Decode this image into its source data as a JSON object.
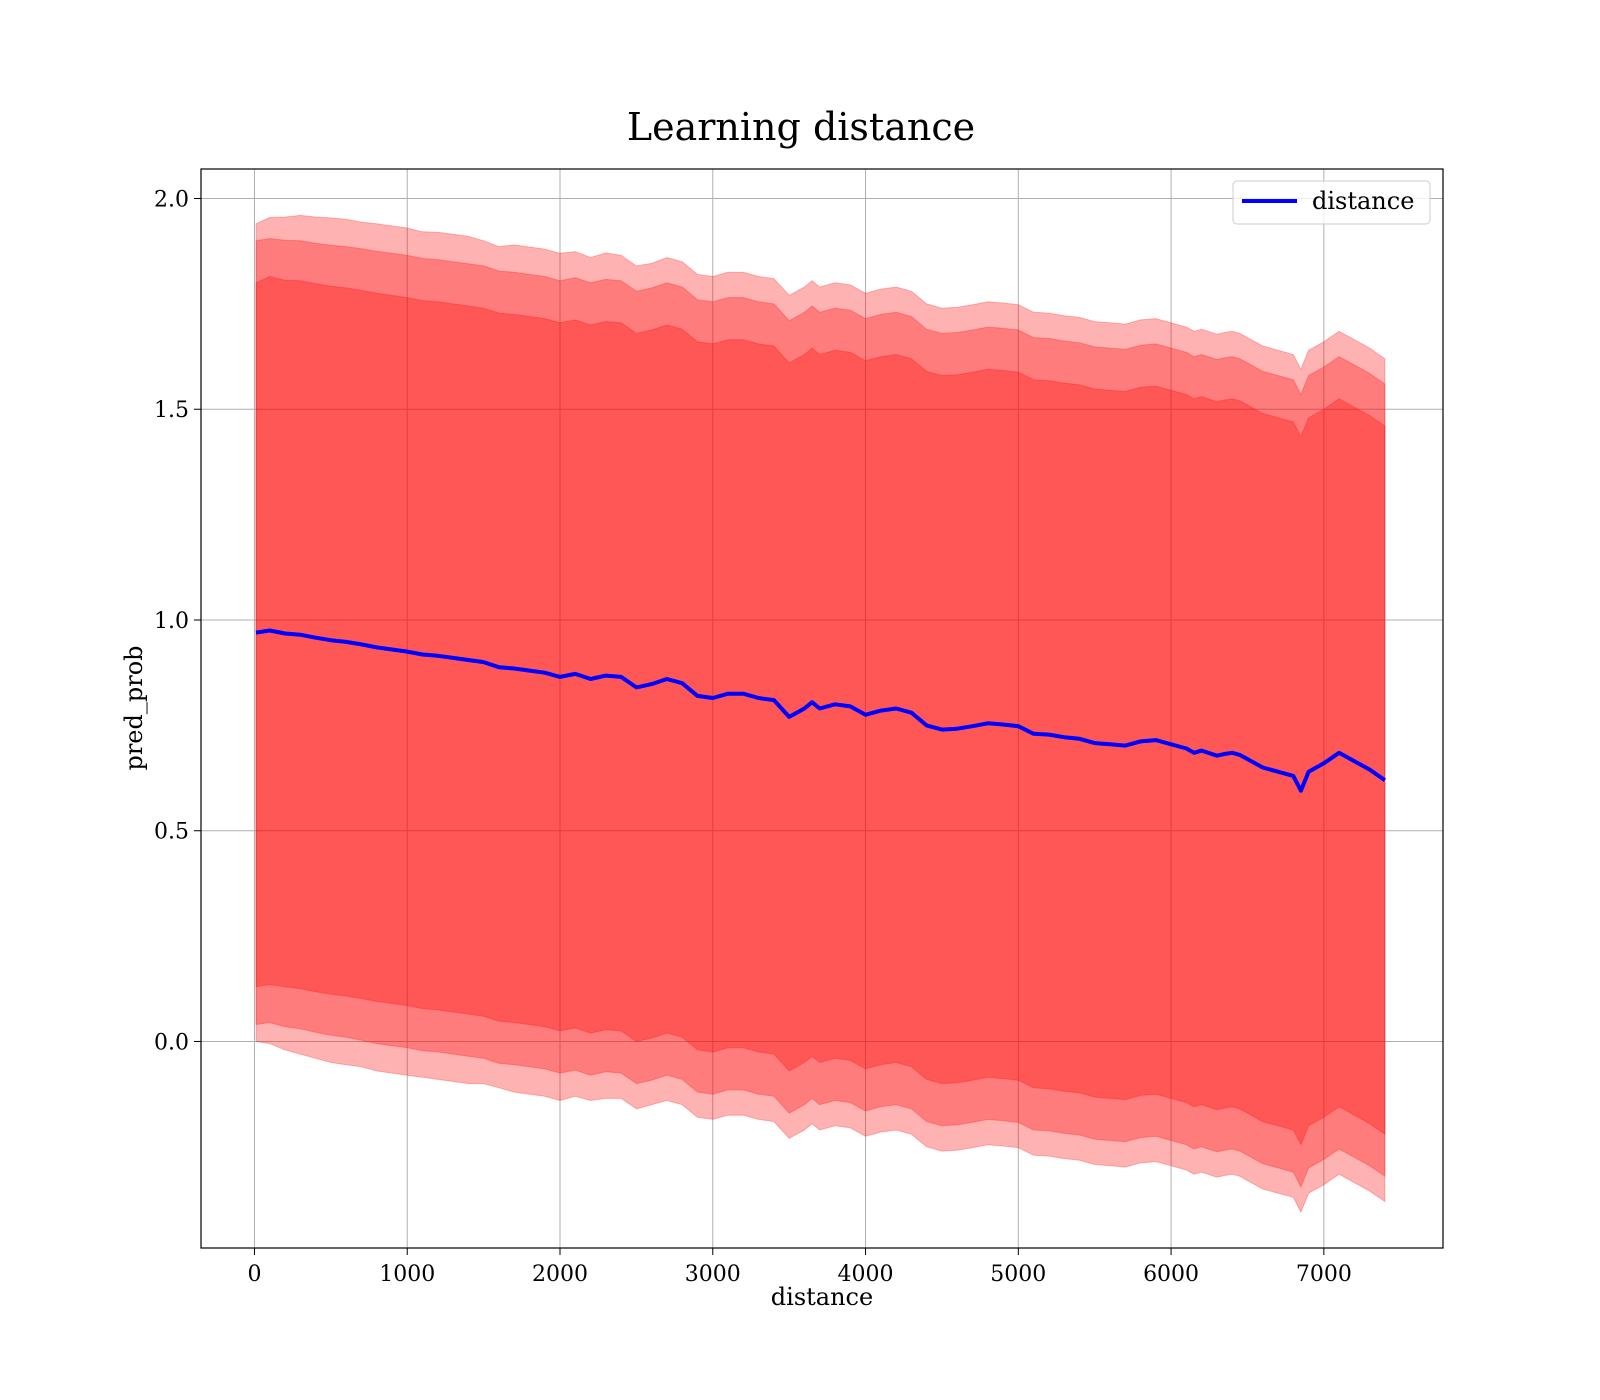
{
  "chart_data": {
    "type": "line",
    "title": "Learning distance",
    "xlabel": "distance",
    "ylabel": "pred_prob",
    "xlim": [
      -350,
      7780
    ],
    "ylim": [
      -0.49,
      2.07
    ],
    "xticks": [
      0,
      1000,
      2000,
      3000,
      4000,
      5000,
      6000,
      7000
    ],
    "yticks": [
      0.0,
      0.5,
      1.0,
      1.5,
      2.0
    ],
    "xtick_labels": [
      "0",
      "1000",
      "2000",
      "3000",
      "4000",
      "5000",
      "6000",
      "7000"
    ],
    "ytick_labels": [
      "0.0",
      "0.5",
      "1.0",
      "1.5",
      "2.0"
    ],
    "grid": true,
    "legend_position": "top-right",
    "colors": {
      "line": "#0000ff",
      "band": "#ff0000",
      "grid": "#b0b0b0"
    },
    "x": [
      10,
      100,
      200,
      300,
      400,
      500,
      600,
      700,
      800,
      900,
      1000,
      1100,
      1200,
      1300,
      1400,
      1500,
      1600,
      1700,
      1800,
      1900,
      2000,
      2100,
      2200,
      2300,
      2400,
      2500,
      2600,
      2700,
      2800,
      2900,
      3000,
      3100,
      3200,
      3300,
      3400,
      3500,
      3600,
      3650,
      3700,
      3800,
      3900,
      4000,
      4100,
      4200,
      4300,
      4400,
      4500,
      4600,
      4700,
      4800,
      4900,
      5000,
      5100,
      5200,
      5300,
      5400,
      5500,
      5600,
      5700,
      5800,
      5900,
      6000,
      6100,
      6150,
      6200,
      6300,
      6350,
      6400,
      6450,
      6500,
      6600,
      6700,
      6750,
      6800,
      6850,
      6900,
      7000,
      7100,
      7200,
      7300,
      7400
    ],
    "series": [
      {
        "name": "distance",
        "values": [
          0.97,
          0.975,
          0.968,
          0.965,
          0.958,
          0.952,
          0.948,
          0.942,
          0.935,
          0.93,
          0.925,
          0.918,
          0.915,
          0.91,
          0.905,
          0.9,
          0.888,
          0.885,
          0.88,
          0.875,
          0.865,
          0.872,
          0.86,
          0.868,
          0.865,
          0.84,
          0.848,
          0.86,
          0.85,
          0.82,
          0.815,
          0.825,
          0.825,
          0.815,
          0.81,
          0.77,
          0.79,
          0.805,
          0.79,
          0.8,
          0.795,
          0.775,
          0.785,
          0.79,
          0.78,
          0.75,
          0.74,
          0.742,
          0.748,
          0.755,
          0.752,
          0.748,
          0.73,
          0.728,
          0.722,
          0.718,
          0.708,
          0.705,
          0.702,
          0.712,
          0.715,
          0.705,
          0.695,
          0.685,
          0.69,
          0.678,
          0.682,
          0.685,
          0.68,
          0.67,
          0.65,
          0.64,
          0.635,
          0.63,
          0.595,
          0.64,
          0.66,
          0.685,
          0.665,
          0.645,
          0.62
        ]
      }
    ],
    "bands": [
      {
        "lower": [
          0.0,
          -0.005,
          -0.02,
          -0.03,
          -0.04,
          -0.05,
          -0.055,
          -0.06,
          -0.07,
          -0.075,
          -0.08,
          -0.085,
          -0.09,
          -0.095,
          -0.1,
          -0.1,
          -0.11,
          -0.12,
          -0.125,
          -0.13,
          -0.14,
          -0.13,
          -0.14,
          -0.135,
          -0.135,
          -0.16,
          -0.15,
          -0.14,
          -0.15,
          -0.18,
          -0.185,
          -0.175,
          -0.175,
          -0.185,
          -0.19,
          -0.23,
          -0.21,
          -0.195,
          -0.21,
          -0.2,
          -0.205,
          -0.225,
          -0.215,
          -0.21,
          -0.22,
          -0.25,
          -0.26,
          -0.258,
          -0.252,
          -0.245,
          -0.248,
          -0.252,
          -0.27,
          -0.272,
          -0.278,
          -0.282,
          -0.292,
          -0.295,
          -0.298,
          -0.288,
          -0.285,
          -0.295,
          -0.305,
          -0.315,
          -0.31,
          -0.322,
          -0.318,
          -0.315,
          -0.32,
          -0.33,
          -0.35,
          -0.36,
          -0.365,
          -0.37,
          -0.405,
          -0.36,
          -0.34,
          -0.315,
          -0.335,
          -0.355,
          -0.38
        ],
        "upper": [
          1.94,
          1.955,
          1.956,
          1.96,
          1.956,
          1.954,
          1.951,
          1.944,
          1.94,
          1.935,
          1.93,
          1.921,
          1.92,
          1.915,
          1.91,
          1.9,
          1.886,
          1.89,
          1.885,
          1.88,
          1.87,
          1.874,
          1.86,
          1.871,
          1.865,
          1.84,
          1.846,
          1.86,
          1.85,
          1.82,
          1.815,
          1.825,
          1.825,
          1.815,
          1.81,
          1.77,
          1.79,
          1.805,
          1.79,
          1.8,
          1.795,
          1.775,
          1.785,
          1.79,
          1.78,
          1.75,
          1.74,
          1.742,
          1.748,
          1.755,
          1.752,
          1.748,
          1.73,
          1.728,
          1.722,
          1.718,
          1.708,
          1.705,
          1.702,
          1.712,
          1.715,
          1.705,
          1.695,
          1.685,
          1.69,
          1.678,
          1.682,
          1.685,
          1.68,
          1.67,
          1.65,
          1.64,
          1.635,
          1.63,
          1.595,
          1.64,
          1.66,
          1.685,
          1.665,
          1.645,
          1.62
        ]
      },
      {
        "lower": [
          0.04,
          0.045,
          0.035,
          0.03,
          0.022,
          0.015,
          0.01,
          0.003,
          -0.005,
          -0.01,
          -0.015,
          -0.022,
          -0.025,
          -0.03,
          -0.035,
          -0.04,
          -0.052,
          -0.055,
          -0.06,
          -0.065,
          -0.075,
          -0.068,
          -0.08,
          -0.072,
          -0.075,
          -0.1,
          -0.092,
          -0.08,
          -0.09,
          -0.12,
          -0.125,
          -0.115,
          -0.115,
          -0.125,
          -0.13,
          -0.17,
          -0.15,
          -0.135,
          -0.15,
          -0.14,
          -0.145,
          -0.165,
          -0.155,
          -0.15,
          -0.16,
          -0.19,
          -0.2,
          -0.198,
          -0.192,
          -0.185,
          -0.188,
          -0.192,
          -0.21,
          -0.212,
          -0.218,
          -0.222,
          -0.232,
          -0.235,
          -0.238,
          -0.228,
          -0.225,
          -0.235,
          -0.245,
          -0.255,
          -0.25,
          -0.262,
          -0.258,
          -0.255,
          -0.26,
          -0.27,
          -0.29,
          -0.3,
          -0.305,
          -0.31,
          -0.345,
          -0.3,
          -0.28,
          -0.255,
          -0.275,
          -0.295,
          -0.32
        ],
        "upper": [
          1.9,
          1.905,
          1.901,
          1.9,
          1.894,
          1.889,
          1.886,
          1.881,
          1.875,
          1.87,
          1.865,
          1.858,
          1.855,
          1.85,
          1.845,
          1.84,
          1.828,
          1.825,
          1.82,
          1.815,
          1.805,
          1.812,
          1.8,
          1.808,
          1.805,
          1.78,
          1.788,
          1.8,
          1.79,
          1.76,
          1.755,
          1.765,
          1.765,
          1.755,
          1.75,
          1.71,
          1.73,
          1.745,
          1.73,
          1.74,
          1.735,
          1.715,
          1.725,
          1.73,
          1.72,
          1.69,
          1.68,
          1.682,
          1.688,
          1.695,
          1.692,
          1.688,
          1.67,
          1.668,
          1.662,
          1.658,
          1.648,
          1.645,
          1.642,
          1.652,
          1.655,
          1.645,
          1.635,
          1.625,
          1.63,
          1.618,
          1.622,
          1.625,
          1.62,
          1.61,
          1.59,
          1.58,
          1.575,
          1.57,
          1.535,
          1.58,
          1.6,
          1.625,
          1.605,
          1.585,
          1.56
        ]
      },
      {
        "lower": [
          0.13,
          0.135,
          0.13,
          0.125,
          0.118,
          0.112,
          0.108,
          0.102,
          0.095,
          0.09,
          0.085,
          0.078,
          0.075,
          0.07,
          0.065,
          0.06,
          0.048,
          0.045,
          0.04,
          0.035,
          0.025,
          0.032,
          0.02,
          0.028,
          0.025,
          0.0,
          0.008,
          0.02,
          0.01,
          -0.02,
          -0.025,
          -0.015,
          -0.015,
          -0.025,
          -0.03,
          -0.07,
          -0.05,
          -0.035,
          -0.05,
          -0.04,
          -0.045,
          -0.065,
          -0.055,
          -0.05,
          -0.06,
          -0.09,
          -0.1,
          -0.098,
          -0.092,
          -0.085,
          -0.088,
          -0.092,
          -0.11,
          -0.112,
          -0.118,
          -0.122,
          -0.132,
          -0.135,
          -0.138,
          -0.128,
          -0.125,
          -0.135,
          -0.145,
          -0.155,
          -0.15,
          -0.162,
          -0.158,
          -0.155,
          -0.16,
          -0.17,
          -0.19,
          -0.2,
          -0.205,
          -0.21,
          -0.245,
          -0.2,
          -0.18,
          -0.155,
          -0.175,
          -0.195,
          -0.22
        ],
        "upper": [
          1.8,
          1.815,
          1.806,
          1.805,
          1.798,
          1.792,
          1.788,
          1.782,
          1.775,
          1.77,
          1.765,
          1.758,
          1.755,
          1.75,
          1.745,
          1.74,
          1.728,
          1.725,
          1.72,
          1.715,
          1.705,
          1.712,
          1.7,
          1.708,
          1.705,
          1.68,
          1.688,
          1.7,
          1.69,
          1.66,
          1.655,
          1.665,
          1.665,
          1.655,
          1.65,
          1.61,
          1.63,
          1.645,
          1.63,
          1.64,
          1.635,
          1.615,
          1.625,
          1.63,
          1.62,
          1.59,
          1.58,
          1.582,
          1.588,
          1.595,
          1.592,
          1.588,
          1.57,
          1.568,
          1.562,
          1.558,
          1.548,
          1.545,
          1.542,
          1.552,
          1.555,
          1.545,
          1.535,
          1.525,
          1.53,
          1.518,
          1.522,
          1.525,
          1.52,
          1.51,
          1.49,
          1.48,
          1.475,
          1.47,
          1.435,
          1.48,
          1.5,
          1.525,
          1.505,
          1.485,
          1.46
        ]
      }
    ]
  }
}
